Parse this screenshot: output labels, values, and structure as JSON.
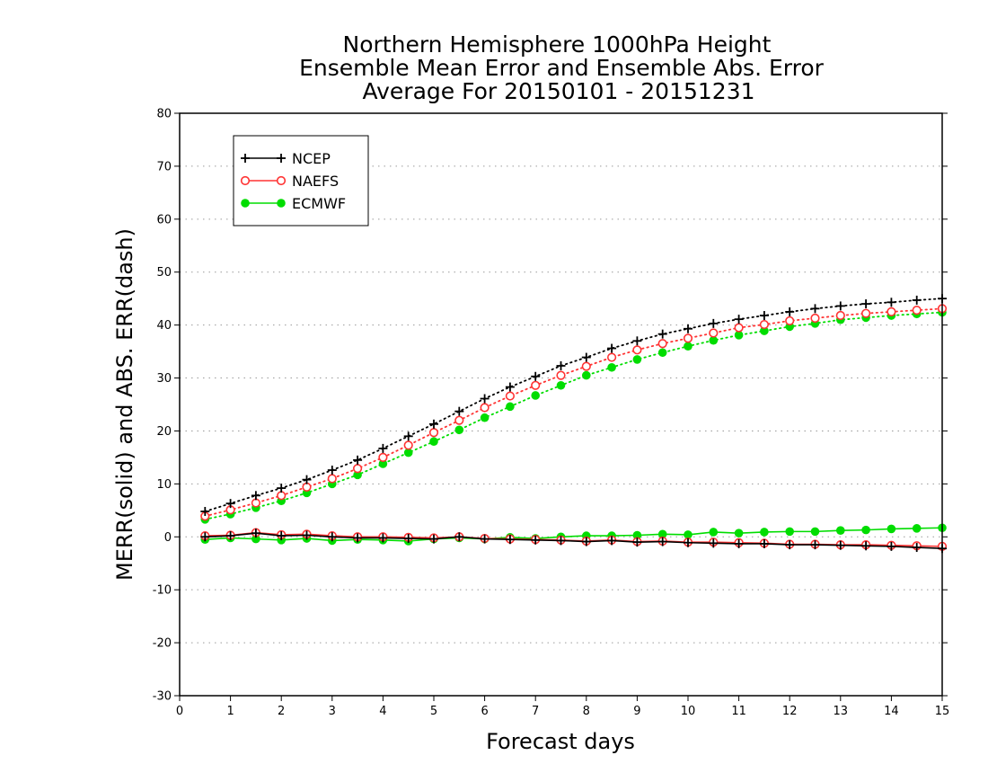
{
  "title": [
    "Northern Hemisphere 1000hPa Height",
    "Ensemble Mean Error and Ensemble Abs. Error",
    "Average For 20150101 - 20151231"
  ],
  "colors": {
    "NCEP": "#000000",
    "NAEFS": "#ff3333",
    "ECMWF": "#00dd00"
  },
  "chart_data": {
    "type": "line",
    "xlabel": "Forecast days",
    "ylabel": "MERR(solid) and ABS. ERR(dash)",
    "xlim": [
      0,
      15
    ],
    "ylim": [
      -30,
      80
    ],
    "xticks": [
      0,
      1,
      2,
      3,
      4,
      5,
      6,
      7,
      8,
      9,
      10,
      11,
      12,
      13,
      14,
      15
    ],
    "yticks": [
      -30,
      -20,
      -10,
      0,
      10,
      20,
      30,
      40,
      50,
      60,
      70,
      80
    ],
    "grid": "horizontal dotted",
    "legend_position": "top-left",
    "legend": [
      "NCEP",
      "NAEFS",
      "ECMWF"
    ],
    "x": [
      0.5,
      1,
      1.5,
      2,
      2.5,
      3,
      3.5,
      4,
      4.5,
      5,
      5.5,
      6,
      6.5,
      7,
      7.5,
      8,
      8.5,
      9,
      9.5,
      10,
      10.5,
      11,
      11.5,
      12,
      12.5,
      13,
      13.5,
      14,
      14.5,
      15
    ],
    "series": [
      {
        "name": "NCEP",
        "marker": "plus",
        "abs_err": [
          4.8,
          6.3,
          7.8,
          9.2,
          10.8,
          12.6,
          14.5,
          16.7,
          19.0,
          21.3,
          23.7,
          26.1,
          28.3,
          30.3,
          32.3,
          33.9,
          35.6,
          37.0,
          38.3,
          39.3,
          40.3,
          41.1,
          41.8,
          42.5,
          43.1,
          43.6,
          44.0,
          44.3,
          44.7,
          45.0
        ],
        "mean_err": [
          0.0,
          0.2,
          0.7,
          0.2,
          0.3,
          0.0,
          -0.2,
          -0.2,
          -0.3,
          -0.4,
          0.0,
          -0.4,
          -0.5,
          -0.6,
          -0.7,
          -0.9,
          -0.7,
          -1.0,
          -0.9,
          -1.1,
          -1.2,
          -1.3,
          -1.3,
          -1.5,
          -1.5,
          -1.6,
          -1.7,
          -1.8,
          -2.0,
          -2.2
        ]
      },
      {
        "name": "NAEFS",
        "marker": "open-circle",
        "abs_err": [
          3.9,
          5.1,
          6.4,
          7.8,
          9.4,
          11.0,
          12.9,
          15.0,
          17.3,
          19.7,
          22.0,
          24.4,
          26.6,
          28.6,
          30.5,
          32.2,
          33.9,
          35.3,
          36.5,
          37.5,
          38.5,
          39.5,
          40.1,
          40.8,
          41.3,
          41.8,
          42.2,
          42.5,
          42.8,
          43.1
        ],
        "mean_err": [
          0.2,
          0.3,
          0.8,
          0.4,
          0.5,
          0.2,
          0.0,
          0.0,
          -0.1,
          -0.2,
          0.0,
          -0.3,
          -0.4,
          -0.5,
          -0.6,
          -0.8,
          -0.6,
          -0.9,
          -0.8,
          -1.0,
          -1.0,
          -1.1,
          -1.2,
          -1.4,
          -1.4,
          -1.5,
          -1.5,
          -1.6,
          -1.7,
          -1.8
        ]
      },
      {
        "name": "ECMWF",
        "marker": "filled-circle",
        "abs_err": [
          3.3,
          4.3,
          5.5,
          6.8,
          8.3,
          10.0,
          11.7,
          13.8,
          15.9,
          18.0,
          20.2,
          22.5,
          24.6,
          26.7,
          28.6,
          30.5,
          32.0,
          33.5,
          34.8,
          36.0,
          37.1,
          38.1,
          38.9,
          39.7,
          40.3,
          41.0,
          41.4,
          41.8,
          42.1,
          42.4
        ],
        "mean_err": [
          -0.5,
          -0.2,
          -0.4,
          -0.6,
          -0.3,
          -0.7,
          -0.5,
          -0.6,
          -0.8,
          -0.4,
          -0.2,
          -0.4,
          -0.1,
          -0.3,
          0.0,
          0.2,
          0.2,
          0.3,
          0.5,
          0.4,
          0.9,
          0.7,
          0.9,
          1.0,
          1.0,
          1.2,
          1.3,
          1.5,
          1.6,
          1.7
        ]
      }
    ]
  }
}
